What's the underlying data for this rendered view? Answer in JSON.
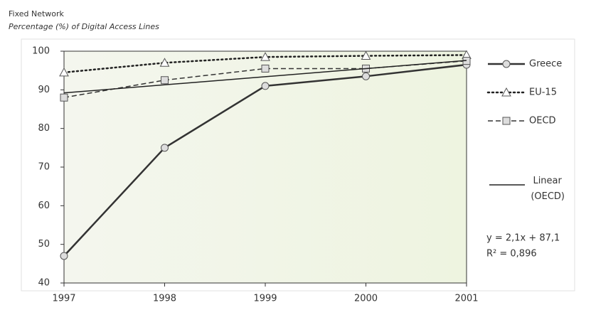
{
  "chart_data": {
    "type": "line",
    "title": "Fixed Network",
    "subtitle": "Percentage (%) of Digital Access Lines",
    "x": [
      1997,
      1998,
      1999,
      2000,
      2001
    ],
    "xlim": [
      1997,
      2001
    ],
    "xticks": [
      1997,
      1998,
      1999,
      2000,
      2001
    ],
    "ylim": [
      40,
      100
    ],
    "yticks": [
      40,
      50,
      60,
      70,
      80,
      90,
      100
    ],
    "series": [
      {
        "name": "Greece",
        "color": "#333333",
        "dash": "solid",
        "marker": "circle",
        "width": 2.5,
        "values": [
          47,
          75,
          91,
          93.5,
          96.5
        ]
      },
      {
        "name": "EU-15",
        "color": "#222222",
        "dash": "dotted",
        "marker": "triangle",
        "width": 2.5,
        "values": [
          94.5,
          97,
          98.5,
          98.8,
          99
        ]
      },
      {
        "name": "OECD",
        "color": "#333333",
        "dash": "dashed",
        "marker": "square",
        "width": 1.5,
        "values": [
          88,
          92.5,
          95.5,
          95.5,
          97.5
        ]
      },
      {
        "name": "Linear (OECD)",
        "color": "#222222",
        "dash": "solid",
        "marker": "none",
        "width": 1.5,
        "values": [
          89.2,
          91.3,
          93.4,
          95.5,
          97.6
        ]
      }
    ],
    "annotations": [
      "y = 2,1x + 87,1",
      "R² = 0,896"
    ]
  }
}
